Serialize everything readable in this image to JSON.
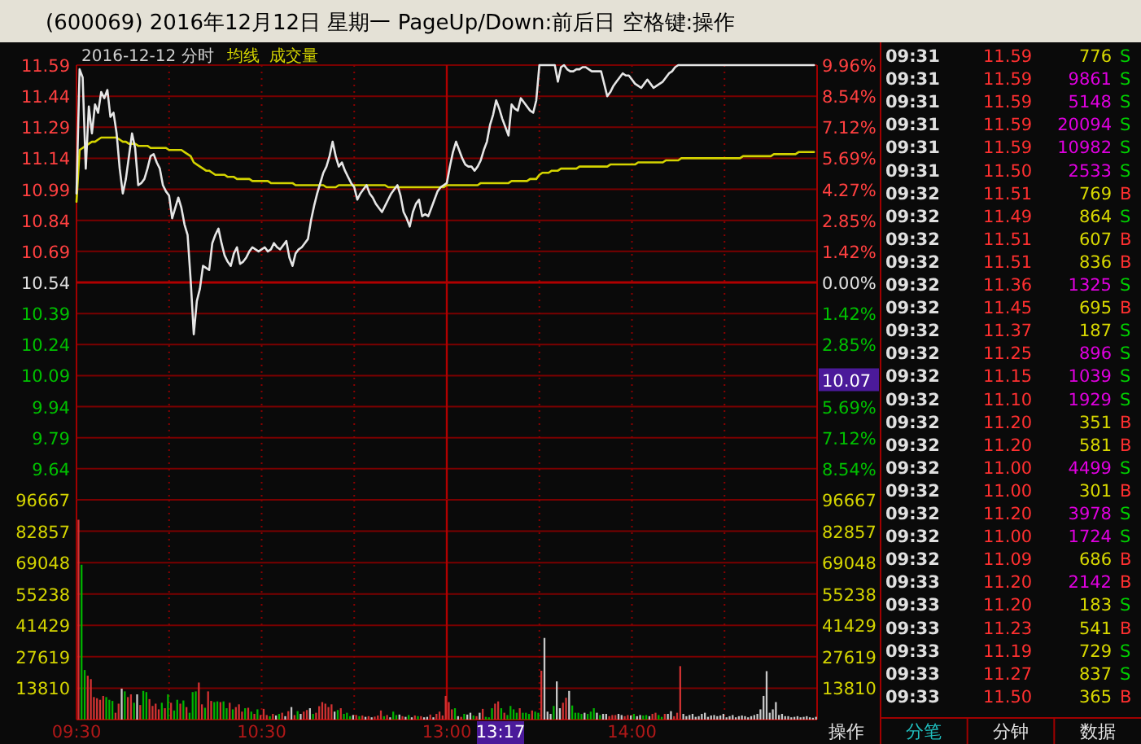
{
  "chart_data": [
    {
      "type": "line",
      "title": "(600069) 2016年12月12日 星期一 PageUp/Down:前后日 空格键:操作",
      "subtitle": "2016-12-12 分时",
      "legend": "top left",
      "grid": true,
      "tick_labels": "y",
      "categories": [
        "09:30",
        null,
        null,
        null,
        null,
        null,
        null,
        null,
        null,
        null,
        null,
        null,
        null,
        null,
        null,
        null,
        null,
        null,
        null,
        null,
        null,
        null,
        null,
        null,
        null,
        null,
        null,
        null,
        null,
        null,
        null,
        null,
        null,
        null,
        null,
        null,
        null,
        null,
        null,
        null,
        null,
        null,
        null,
        null,
        null,
        null,
        null,
        null,
        null,
        null,
        null,
        null,
        null,
        null,
        null,
        null,
        null,
        null,
        null,
        null,
        "10:30",
        null,
        null,
        null,
        null,
        null,
        null,
        null,
        null,
        null,
        null,
        null,
        null,
        null,
        null,
        null,
        null,
        null,
        null,
        null,
        null,
        null,
        null,
        null,
        null,
        null,
        null,
        null,
        null,
        null,
        null,
        null,
        null,
        null,
        null,
        null,
        null,
        null,
        null,
        null,
        null,
        null,
        null,
        null,
        null,
        null,
        null,
        null,
        null,
        null,
        null,
        null,
        null,
        null,
        null,
        null,
        null,
        null,
        null,
        null,
        "13:00",
        null,
        null,
        null,
        null,
        null,
        null,
        null,
        null,
        null,
        null,
        null,
        null,
        null,
        null,
        null,
        null,
        null,
        null,
        null,
        null,
        null,
        null,
        null,
        null,
        null,
        null,
        null,
        null,
        null,
        null,
        null,
        null,
        null,
        null,
        null,
        null,
        null,
        null,
        null,
        null,
        null,
        null,
        null,
        null,
        null,
        null,
        null,
        null,
        null,
        null,
        null,
        null,
        null,
        null,
        null,
        null,
        null,
        null,
        null,
        "14:00",
        null,
        null,
        null,
        null,
        null,
        null,
        null,
        null,
        null,
        null,
        null,
        null,
        null,
        null,
        null,
        null,
        null,
        null,
        null,
        null,
        null,
        null,
        null,
        null,
        null,
        null,
        null,
        null,
        null,
        null,
        null,
        null,
        null,
        null,
        null,
        null,
        null,
        null,
        null,
        null,
        null,
        null,
        null,
        null,
        null,
        null,
        null,
        null,
        null,
        null,
        null,
        null,
        null,
        null,
        null,
        null,
        null,
        null,
        null
      ],
      "ylim": [
        9.49,
        11.59
      ],
      "yticks": [
        11.59,
        11.44,
        11.29,
        11.14,
        10.99,
        10.84,
        10.69,
        10.54,
        10.39,
        10.24,
        10.09,
        9.94,
        9.79,
        9.64
      ],
      "y2lim": [
        -9.96,
        9.96
      ],
      "y2ticks": [
        {
          "value": 9.96,
          "label": "9.96%"
        },
        {
          "value": 8.54,
          "label": "8.54%"
        },
        {
          "value": 7.12,
          "label": "7.12%"
        },
        {
          "value": 5.69,
          "label": "5.69%"
        },
        {
          "value": 4.27,
          "label": "4.27%"
        },
        {
          "value": 2.85,
          "label": "2.85%"
        },
        {
          "value": 1.42,
          "label": "1.42%"
        },
        {
          "value": 0,
          "label": "0.00%"
        },
        {
          "value": -1.42,
          "label": "1.42%"
        },
        {
          "value": -2.85,
          "label": "2.85%"
        },
        {
          "value": -5.69,
          "label": "5.69%"
        },
        {
          "value": -7.12,
          "label": "7.12%"
        },
        {
          "value": -8.54,
          "label": "8.54%"
        }
      ],
      "ref_lines": [
        {
          "axis": "y",
          "value": 10.54,
          "color": "#b00000"
        },
        {
          "axis": "x",
          "value": "13:00",
          "color": "#b00000"
        }
      ],
      "annotations": [
        {
          "text": "10.07",
          "y": 10.07
        }
      ],
      "series": [
        {
          "color": "#e6e6e6",
          "values": [
            10.97,
            11.57,
            11.53,
            11.09,
            11.39,
            11.26,
            11.4,
            11.36,
            11.46,
            11.43,
            11.47,
            11.34,
            11.36,
            11.26,
            11.09,
            10.97,
            11.04,
            11.15,
            11.26,
            11.19,
            11.01,
            11.02,
            11.04,
            11.09,
            11.15,
            11.16,
            11.12,
            11.09,
            11.01,
            10.98,
            10.96,
            10.85,
            10.9,
            10.95,
            10.9,
            10.82,
            10.77,
            10.55,
            10.29,
            10.45,
            10.51,
            10.62,
            10.61,
            10.6,
            10.73,
            10.77,
            10.8,
            10.73,
            10.67,
            10.64,
            10.62,
            10.68,
            10.71,
            10.63,
            10.64,
            10.66,
            10.69,
            10.71,
            10.7,
            10.69,
            10.7,
            10.71,
            10.69,
            10.7,
            10.73,
            10.71,
            10.7,
            10.72,
            10.74,
            10.66,
            10.62,
            10.68,
            10.7,
            10.71,
            10.73,
            10.75,
            10.84,
            10.91,
            10.97,
            11.02,
            11.07,
            11.1,
            11.15,
            11.22,
            11.15,
            11.1,
            11.12,
            11.08,
            11.05,
            11.02,
            11.0,
            10.94,
            10.97,
            10.99,
            11.01,
            10.97,
            10.95,
            10.92,
            10.9,
            10.88,
            10.91,
            10.94,
            10.97,
            10.99,
            11.01,
            10.96,
            10.88,
            10.85,
            10.81,
            10.88,
            10.92,
            10.94,
            10.86,
            10.87,
            10.86,
            10.9,
            10.94,
            10.98,
            11.0,
            11.01,
            11.02,
            11.1,
            11.17,
            11.22,
            11.18,
            11.14,
            11.11,
            11.1,
            11.1,
            11.08,
            11.1,
            11.13,
            11.18,
            11.22,
            11.3,
            11.35,
            11.42,
            11.38,
            11.33,
            11.29,
            11.25,
            11.4,
            11.38,
            11.37,
            11.43,
            11.41,
            11.39,
            11.37,
            11.36,
            11.42,
            11.59,
            11.59,
            11.59,
            11.59,
            11.59,
            11.59,
            11.51,
            11.58,
            11.59,
            11.57,
            11.56,
            11.56,
            11.57,
            11.57,
            11.58,
            11.58,
            11.57,
            11.56,
            11.56,
            11.56,
            11.56,
            11.5,
            11.44,
            11.46,
            11.49,
            11.51,
            11.53,
            11.55,
            11.54,
            11.54,
            11.52,
            11.5,
            11.49,
            11.48,
            11.5,
            11.52,
            11.5,
            11.48,
            11.49,
            11.5,
            11.51,
            11.53,
            11.55,
            11.56,
            11.58,
            11.59,
            11.59,
            11.59,
            11.59,
            11.59,
            11.59,
            11.59,
            11.59,
            11.59,
            11.59,
            11.59,
            11.59,
            11.59,
            11.59,
            11.59,
            11.59,
            11.59,
            11.59,
            11.59,
            11.59,
            11.59,
            11.59,
            11.59,
            11.59,
            11.59,
            11.59,
            11.59,
            11.59,
            11.59,
            11.59,
            11.59,
            11.59,
            11.59,
            11.59,
            11.59,
            11.59,
            11.59,
            11.59,
            11.59,
            11.59,
            11.59,
            11.59,
            11.59,
            11.59,
            11.59
          ]
        },
        {
          "name": "均线",
          "color": "#d4d400",
          "values": [
            10.93,
            11.18,
            11.19,
            11.2,
            11.21,
            11.22,
            11.22,
            11.23,
            11.24,
            11.24,
            11.24,
            11.24,
            11.24,
            11.24,
            11.23,
            11.22,
            11.22,
            11.21,
            11.21,
            11.21,
            11.2,
            11.2,
            11.2,
            11.2,
            11.19,
            11.19,
            11.19,
            11.19,
            11.19,
            11.19,
            11.18,
            11.18,
            11.18,
            11.18,
            11.18,
            11.17,
            11.16,
            11.15,
            11.12,
            11.11,
            11.1,
            11.09,
            11.08,
            11.08,
            11.07,
            11.06,
            11.06,
            11.06,
            11.06,
            11.05,
            11.05,
            11.05,
            11.04,
            11.04,
            11.04,
            11.04,
            11.04,
            11.03,
            11.03,
            11.03,
            11.03,
            11.03,
            11.03,
            11.02,
            11.02,
            11.02,
            11.02,
            11.02,
            11.02,
            11.02,
            11.02,
            11.01,
            11.01,
            11.01,
            11.01,
            11.01,
            11.01,
            11.01,
            11.01,
            11.01,
            11.01,
            11.0,
            11.0,
            11.0,
            11.0,
            11.01,
            11.01,
            11.01,
            11.01,
            11.01,
            11.01,
            11.01,
            11.01,
            11.01,
            11.01,
            11.01,
            11.01,
            11.01,
            11.01,
            11.01,
            11.01,
            11.0,
            11.0,
            11.0,
            11.0,
            11.0,
            11.0,
            11.0,
            11.0,
            11.0,
            11.0,
            11.0,
            11.0,
            11.0,
            11.0,
            11.0,
            11.0,
            11.0,
            11.0,
            11.0,
            11.01,
            11.01,
            11.01,
            11.01,
            11.01,
            11.01,
            11.01,
            11.01,
            11.01,
            11.01,
            11.01,
            11.02,
            11.02,
            11.02,
            11.02,
            11.02,
            11.02,
            11.02,
            11.02,
            11.02,
            11.02,
            11.03,
            11.03,
            11.03,
            11.03,
            11.03,
            11.03,
            11.04,
            11.04,
            11.04,
            11.06,
            11.07,
            11.07,
            11.07,
            11.08,
            11.08,
            11.08,
            11.09,
            11.09,
            11.09,
            11.09,
            11.09,
            11.09,
            11.1,
            11.1,
            11.1,
            11.1,
            11.1,
            11.1,
            11.1,
            11.1,
            11.1,
            11.1,
            11.11,
            11.11,
            11.11,
            11.11,
            11.11,
            11.11,
            11.11,
            11.11,
            11.11,
            11.12,
            11.12,
            11.12,
            11.12,
            11.12,
            11.12,
            11.12,
            11.12,
            11.12,
            11.13,
            11.13,
            11.13,
            11.13,
            11.13,
            11.14,
            11.14,
            11.14,
            11.14,
            11.14,
            11.14,
            11.14,
            11.14,
            11.14,
            11.14,
            11.14,
            11.14,
            11.14,
            11.14,
            11.14,
            11.14,
            11.14,
            11.14,
            11.14,
            11.14,
            11.15,
            11.15,
            11.15,
            11.15,
            11.15,
            11.15,
            11.15,
            11.15,
            11.15,
            11.15,
            11.16,
            11.16,
            11.16,
            11.16,
            11.16,
            11.16,
            11.16,
            11.16,
            11.17,
            11.17,
            11.17,
            11.17,
            11.17,
            11.17
          ]
        }
      ]
    },
    {
      "type": "bar",
      "title": "成交量",
      "grid": true,
      "categories": [
        "09:30",
        null,
        null,
        null,
        null,
        null,
        null,
        null,
        null,
        null,
        null,
        null,
        null,
        null,
        null,
        null,
        null,
        null,
        null,
        null,
        null,
        null,
        null,
        null,
        null,
        null,
        null,
        null,
        null,
        null,
        null,
        null,
        null,
        null,
        null,
        null,
        null,
        null,
        null,
        null,
        null,
        null,
        null,
        null,
        null,
        null,
        null,
        null,
        null,
        null,
        null,
        null,
        null,
        null,
        null,
        null,
        null,
        null,
        null,
        null,
        "10:30",
        null,
        null,
        null,
        null,
        null,
        null,
        null,
        null,
        null,
        null,
        null,
        null,
        null,
        null,
        null,
        null,
        null,
        null,
        null,
        null,
        null,
        null,
        null,
        null,
        null,
        null,
        null,
        null,
        null,
        null,
        null,
        null,
        null,
        null,
        null,
        null,
        null,
        null,
        null,
        null,
        null,
        null,
        null,
        null,
        null,
        null,
        null,
        null,
        null,
        null,
        null,
        null,
        null,
        null,
        null,
        null,
        null,
        null,
        null,
        "13:00",
        null,
        null,
        null,
        null,
        null,
        null,
        null,
        null,
        null,
        null,
        null,
        null,
        null,
        null,
        null,
        null,
        null,
        null,
        null,
        null,
        null,
        null,
        null,
        null,
        null,
        null,
        null,
        null,
        null,
        null,
        null,
        null,
        null,
        null,
        null,
        null,
        null,
        null,
        null,
        null,
        null,
        null,
        null,
        null,
        null,
        null,
        null,
        null,
        null,
        null,
        null,
        null,
        null,
        null,
        null,
        null,
        null,
        null,
        null,
        "14:00",
        null,
        null,
        null,
        null,
        null,
        null,
        null,
        null,
        null,
        null,
        null,
        null,
        null,
        null,
        null,
        null,
        null,
        null,
        null,
        null,
        null,
        null,
        null,
        null,
        null,
        null,
        null,
        null,
        null,
        null,
        null,
        null,
        null,
        null,
        null,
        null,
        null,
        null,
        null,
        null,
        null,
        null,
        null,
        null,
        null,
        null,
        null,
        null,
        null,
        null,
        null,
        null,
        null,
        null,
        null,
        null,
        null,
        null,
        null
      ],
      "ylim": [
        0,
        96667
      ],
      "yticks": [
        96667,
        82857,
        69048,
        55238,
        41429,
        27619,
        13810
      ],
      "y2lim": [
        0,
        96667
      ],
      "y2ticks": [
        96667,
        82857,
        69048,
        55238,
        41429,
        27619,
        13810
      ],
      "ref_lines": [
        {
          "axis": "x",
          "value": "13:00",
          "color": "#b00000"
        }
      ],
      "annotations": [
        "13:17",
        "操作"
      ],
      "values": [
        87900,
        68100,
        21800,
        19300,
        17800,
        9900,
        9400,
        8700,
        10400,
        9900,
        8700,
        8200,
        3000,
        7000,
        13600,
        12400,
        9900,
        11100,
        7400,
        11100,
        6400,
        12600,
        12100,
        9000,
        6000,
        7000,
        4500,
        7400,
        5000,
        11100,
        7400,
        4000,
        8700,
        7000,
        8400,
        5500,
        3000,
        12100,
        12400,
        16300,
        6700,
        5200,
        12400,
        8200,
        7700,
        8000,
        7700,
        8000,
        5000,
        7400,
        4500,
        5500,
        6700,
        3500,
        5000,
        5200,
        3500,
        2500,
        4500,
        2000,
        4700,
        2000,
        1500,
        2500,
        1800,
        2500,
        3000,
        1500,
        3700,
        5500,
        2000,
        3700,
        2500,
        3500,
        4200,
        5000,
        2500,
        3000,
        5900,
        7700,
        7000,
        5500,
        6700,
        3500,
        4200,
        5000,
        2500,
        3000,
        1500,
        2000,
        2000,
        1500,
        1800,
        1200,
        1500,
        1000,
        1300,
        1800,
        4000,
        1500,
        2000,
        1000,
        3500,
        2000,
        2200,
        1500,
        1200,
        2000,
        1000,
        1800,
        1500,
        1500,
        1000,
        1200,
        2200,
        1000,
        2500,
        3500,
        1800,
        10400,
        7700,
        4500,
        5000,
        1500,
        1200,
        2500,
        2200,
        3000,
        1800,
        1500,
        3000,
        4700,
        1200,
        1000,
        5000,
        7000,
        8000,
        5000,
        3000,
        2000,
        6000,
        4500,
        3000,
        5000,
        3000,
        3000,
        2500,
        4000,
        3500,
        3000,
        21500,
        35900,
        3500,
        2500,
        6000,
        16800,
        5000,
        7400,
        9600,
        12600,
        6200,
        3000,
        3000,
        2500,
        3000,
        2500,
        3500,
        5000,
        3000,
        2000,
        2500,
        2500,
        1500,
        2000,
        2000,
        2500,
        2000,
        1500,
        2000,
        1800,
        2500,
        1500,
        2000,
        1800,
        2000,
        1500,
        2500,
        3000,
        2000,
        1200,
        2500,
        2500,
        3700,
        1500,
        3000,
        23500,
        2500,
        1500,
        2000,
        2500,
        1200,
        1500,
        2500,
        3000,
        1200,
        1800,
        2000,
        1500,
        1800,
        2500,
        1000,
        1500,
        2000,
        1000,
        1500,
        1800,
        1500,
        1000,
        1500,
        2000,
        2500,
        4500,
        10400,
        21300,
        3000,
        4500,
        7700,
        2000,
        2500,
        1500,
        1500,
        1000,
        1200,
        1500,
        1000,
        1200,
        1500,
        1000,
        800,
        1200
      ],
      "colors": [
        "#d23232",
        "#00b400",
        "#00b400",
        "#d23232",
        "#d23232",
        "#d23232",
        "#d23232",
        "#d23232",
        "#d23232",
        "#00b400",
        "#00b400",
        "#00b400",
        "#d23232",
        "#d23232",
        "#c8c8c8",
        "#00b400",
        "#d23232",
        "#d23232",
        "#00b400",
        "#c8c8c8",
        "#d23232",
        "#00b400",
        "#00b400",
        "#d23232",
        "#d23232",
        "#d23232",
        "#d23232",
        "#00b400",
        "#d23232",
        "#00b400",
        "#d23232",
        "#00b400",
        "#00b400",
        "#d23232",
        "#00b400",
        "#d23232",
        "#00b400",
        "#00b400",
        "#00b400",
        "#d23232",
        "#d23232",
        "#00b400",
        "#d23232",
        "#d23232",
        "#00b400",
        "#00b400",
        "#d23232",
        "#00b400",
        "#00b400",
        "#d23232",
        "#00b400",
        "#d23232",
        "#d23232",
        "#d23232",
        "#00b400",
        "#d23232",
        "#00b400",
        "#d23232",
        "#00b400",
        "#d23232",
        "#d23232",
        "#d23232",
        "#00b400",
        "#d23232",
        "#c8c8c8",
        "#00b400",
        "#d23232",
        "#c8c8c8",
        "#d23232",
        "#c8c8c8",
        "#d23232",
        "#00b400",
        "#c8c8c8",
        "#d23232",
        "#d23232",
        "#c8c8c8",
        "#00b400",
        "#d23232",
        "#d23232",
        "#d23232",
        "#d23232",
        "#d23232",
        "#d23232",
        "#c8c8c8",
        "#00b400",
        "#d23232",
        "#00b400",
        "#00b400",
        "#00b400",
        "#c8c8c8",
        "#d23232",
        "#00b400",
        "#d23232",
        "#c8c8c8",
        "#d23232",
        "#c8c8c8",
        "#d23232",
        "#d23232",
        "#d23232",
        "#00b400",
        "#d23232",
        "#c8c8c8",
        "#00b400",
        "#00b400",
        "#c8c8c8",
        "#d23232",
        "#c8c8c8",
        "#00b400",
        "#c8c8c8",
        "#d23232",
        "#00b400",
        "#d23232",
        "#c8c8c8",
        "#c8c8c8",
        "#d23232",
        "#c8c8c8",
        "#d23232",
        "#d23232",
        "#d23232",
        "#d23232",
        "#d23232",
        "#d23232",
        "#00b400",
        "#c8c8c8",
        "#d23232",
        "#00b400",
        "#c8c8c8",
        "#c8c8c8",
        "#00b400",
        "#d23232",
        "#c8c8c8",
        "#d23232",
        "#00b400",
        "#00b400",
        "#00b400",
        "#d23232",
        "#d23232",
        "#00b400",
        "#d23232",
        "#00b400",
        "#00b400",
        "#00b400",
        "#00b400",
        "#d23232",
        "#00b400",
        "#00b400",
        "#00b400",
        "#d23232",
        "#00b400",
        "#00b400",
        "#d23232",
        "#c8c8c8",
        "#c8c8c8",
        "#c8c8c8",
        "#00b400",
        "#c8c8c8",
        "#c8c8c8",
        "#d23232",
        "#d23232",
        "#c8c8c8",
        "#00b400",
        "#00b400",
        "#00b400",
        "#00b400",
        "#c8c8c8",
        "#00b400",
        "#00b400",
        "#00b400",
        "#c8c8c8",
        "#00b400",
        "#c8c8c8",
        "#c8c8c8",
        "#d23232",
        "#d23232",
        "#d23232",
        "#c8c8c8",
        "#c8c8c8",
        "#d23232",
        "#d23232",
        "#c8c8c8",
        "#00b400",
        "#c8c8c8",
        "#c8c8c8",
        "#00b400",
        "#00b400",
        "#c8c8c8",
        "#d23232",
        "#d23232",
        "#00b400",
        "#00b400",
        "#d23232",
        "#c8c8c8",
        "#c8c8c8",
        "#d23232",
        "#d23232",
        "#d23232",
        "#c8c8c8",
        "#c8c8c8",
        "#c8c8c8",
        "#c8c8c8",
        "#c8c8c8",
        "#c8c8c8",
        "#c8c8c8",
        "#c8c8c8",
        "#c8c8c8",
        "#c8c8c8",
        "#c8c8c8",
        "#c8c8c8",
        "#c8c8c8",
        "#c8c8c8",
        "#c8c8c8",
        "#c8c8c8",
        "#c8c8c8",
        "#c8c8c8",
        "#c8c8c8",
        "#c8c8c8",
        "#c8c8c8",
        "#c8c8c8",
        "#c8c8c8",
        "#c8c8c8",
        "#c8c8c8",
        "#c8c8c8",
        "#c8c8c8",
        "#c8c8c8",
        "#c8c8c8",
        "#c8c8c8",
        "#c8c8c8",
        "#c8c8c8",
        "#c8c8c8",
        "#c8c8c8",
        "#c8c8c8",
        "#c8c8c8",
        "#c8c8c8",
        "#c8c8c8",
        "#c8c8c8",
        "#c8c8c8",
        "#c8c8c8",
        "#c8c8c8",
        "#c8c8c8",
        "#c8c8c8"
      ]
    },
    {
      "type": "other",
      "categories": [
        "分笔",
        "分钟",
        "数据"
      ],
      "annotations": [
        "09:31 11.59 776 S",
        "09:31 11.59 9861 S",
        "09:31 11.59 5148 S",
        "09:31 11.59 20094 S",
        "09:31 11.59 10982 S",
        "09:31 11.50 2533 S",
        "09:32 11.51 769 B",
        "09:32 11.49 864 S",
        "09:32 11.51 607 B",
        "09:32 11.51 836 B",
        "09:32 11.36 1325 S",
        "09:32 11.45 695 B",
        "09:32 11.37 187 S",
        "09:32 11.25 896 S",
        "09:32 11.15 1039 S",
        "09:32 11.10 1929 S",
        "09:32 11.20 351 B",
        "09:32 11.20 581 B",
        "09:32 11.00 4499 S",
        "09:32 11.00 301 B",
        "09:32 11.20 3978 S",
        "09:32 11.00 1724 S",
        "09:32 11.09 686 B",
        "09:33 11.20 2142 B",
        "09:33 11.20 183 S",
        "09:33 11.23 541 B",
        "09:33 11.19 729 S",
        "09:33 11.27 837 S",
        "09:33 11.50 365 B"
      ],
      "colors": [
        "#d8d800",
        "#00d000",
        "#e000e0",
        "#00d000",
        "#e000e0",
        "#00d000",
        "#e000e0",
        "#00d000",
        "#e000e0",
        "#00d000",
        "#e000e0",
        "#00d000",
        "#d8d800",
        "#ff3030",
        "#d8d800",
        "#00d000",
        "#d8d800",
        "#ff3030",
        "#d8d800",
        "#ff3030",
        "#e000e0",
        "#00d000",
        "#d8d800",
        "#ff3030",
        "#d8d800",
        "#00d000",
        "#e000e0",
        "#00d000",
        "#e000e0",
        "#00d000",
        "#e000e0",
        "#00d000",
        "#d8d800",
        "#ff3030",
        "#d8d800",
        "#ff3030",
        "#e000e0",
        "#00d000",
        "#d8d800",
        "#ff3030",
        "#e000e0",
        "#00d000",
        "#e000e0",
        "#00d000",
        "#d8d800",
        "#ff3030",
        "#e000e0",
        "#ff3030",
        "#d8d800",
        "#00d000",
        "#d8d800",
        "#ff3030",
        "#d8d800",
        "#00d000",
        "#d8d800",
        "#00d000",
        "#d8d800",
        "#ff3030"
      ]
    }
  ]
}
